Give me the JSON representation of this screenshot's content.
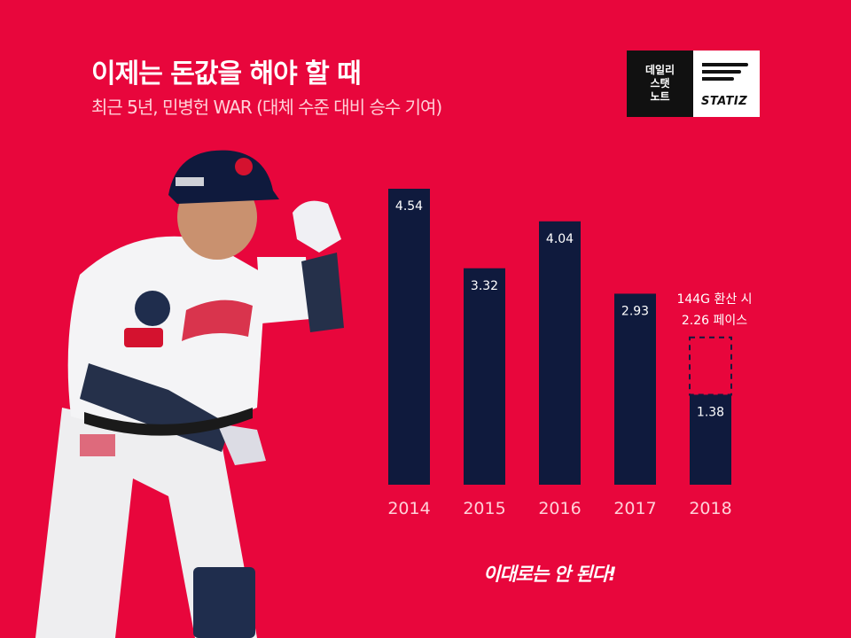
{
  "title": "이제는 돈값을 해야 할 때",
  "subtitle": "최근 5년, 민병헌 WAR (대체 수준 대비 승수 기여)",
  "logo": {
    "line1": "데일리",
    "line2": "스탯",
    "line3": "노트",
    "brand": "STATIZ"
  },
  "note": {
    "line1": "144G 환산 시",
    "line2": "2.26 페이스"
  },
  "footer": "이대로는 안 된다!",
  "colors": {
    "background": "#e8063c",
    "bar": "#0f1a3d",
    "text": "#ffffff"
  },
  "chart_data": {
    "type": "bar",
    "categories": [
      "2014",
      "2015",
      "2016",
      "2017",
      "2018"
    ],
    "values": [
      4.54,
      3.32,
      4.04,
      2.93,
      1.38
    ],
    "value_labels": [
      "4.54",
      "3.32",
      "4.04",
      "2.93",
      "1.38"
    ],
    "projected": {
      "category": "2018",
      "value": 2.26
    },
    "title": "이제는 돈값을 해야 할 때",
    "ylim": [
      0,
      5
    ],
    "grid": false,
    "legend": "none"
  }
}
